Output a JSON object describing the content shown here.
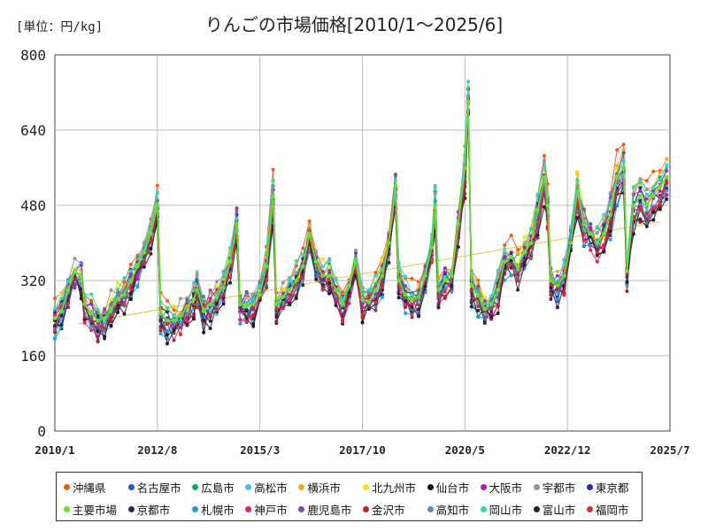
{
  "header": {
    "unit": "[単位：円/kg]",
    "title": "りんごの市場価格[2010/1～2025/6]"
  },
  "chart_data": {
    "type": "line",
    "title": "りんごの市場価格[2010/1～2025/6]",
    "ylabel": "[単位：円/kg]",
    "ylim": [
      0,
      800
    ],
    "yticks": [
      0,
      160,
      320,
      480,
      640,
      800
    ],
    "xlim": [
      "2010-01",
      "2025-07"
    ],
    "xticks": [
      "2010/1",
      "2012/8",
      "2015/3",
      "2017/10",
      "2020/5",
      "2022/12",
      "2025/7"
    ],
    "grid": true,
    "legend_position": "bottom",
    "main_series": {
      "name": "主要市場",
      "color": "#66e030",
      "points": [
        [
          "2010-01",
          240
        ],
        [
          "2010-03",
          255
        ],
        [
          "2010-05",
          300
        ],
        [
          "2010-07",
          340
        ],
        [
          "2010-09",
          330
        ],
        [
          "2010-10",
          270
        ],
        [
          "2010-12",
          250
        ],
        [
          "2011-02",
          235
        ],
        [
          "2011-04",
          240
        ],
        [
          "2011-06",
          260
        ],
        [
          "2011-08",
          280
        ],
        [
          "2011-10",
          290
        ],
        [
          "2011-12",
          320
        ],
        [
          "2012-02",
          350
        ],
        [
          "2012-04",
          380
        ],
        [
          "2012-06",
          420
        ],
        [
          "2012-08",
          480
        ],
        [
          "2012-09",
          250
        ],
        [
          "2012-11",
          235
        ],
        [
          "2013-01",
          235
        ],
        [
          "2013-03",
          245
        ],
        [
          "2013-05",
          265
        ],
        [
          "2013-07",
          280
        ],
        [
          "2013-08",
          300
        ],
        [
          "2013-10",
          255
        ],
        [
          "2013-12",
          270
        ],
        [
          "2014-02",
          285
        ],
        [
          "2014-04",
          305
        ],
        [
          "2014-06",
          360
        ],
        [
          "2014-08",
          440
        ],
        [
          "2014-09",
          270
        ],
        [
          "2014-11",
          265
        ],
        [
          "2015-01",
          270
        ],
        [
          "2015-03",
          290
        ],
        [
          "2015-05",
          350
        ],
        [
          "2015-07",
          500
        ],
        [
          "2015-08",
          270
        ],
        [
          "2015-10",
          285
        ],
        [
          "2015-12",
          300
        ],
        [
          "2016-02",
          320
        ],
        [
          "2016-04",
          350
        ],
        [
          "2016-06",
          420
        ],
        [
          "2016-08",
          360
        ],
        [
          "2016-10",
          330
        ],
        [
          "2016-12",
          330
        ],
        [
          "2017-02",
          300
        ],
        [
          "2017-04",
          270
        ],
        [
          "2017-06",
          310
        ],
        [
          "2017-08",
          360
        ],
        [
          "2017-10",
          280
        ],
        [
          "2017-12",
          275
        ],
        [
          "2018-02",
          300
        ],
        [
          "2018-04",
          330
        ],
        [
          "2018-06",
          400
        ],
        [
          "2018-08",
          520
        ],
        [
          "2018-09",
          320
        ],
        [
          "2018-11",
          290
        ],
        [
          "2019-01",
          280
        ],
        [
          "2019-03",
          285
        ],
        [
          "2019-05",
          330
        ],
        [
          "2019-07",
          390
        ],
        [
          "2019-08",
          480
        ],
        [
          "2019-09",
          300
        ],
        [
          "2019-11",
          320
        ],
        [
          "2020-01",
          330
        ],
        [
          "2020-03",
          440
        ],
        [
          "2020-05",
          560
        ],
        [
          "2020-06",
          700
        ],
        [
          "2020-07",
          310
        ],
        [
          "2020-09",
          290
        ],
        [
          "2020-11",
          260
        ],
        [
          "2021-01",
          270
        ],
        [
          "2021-03",
          300
        ],
        [
          "2021-05",
          360
        ],
        [
          "2021-07",
          370
        ],
        [
          "2021-09",
          350
        ],
        [
          "2021-11",
          380
        ],
        [
          "2022-01",
          400
        ],
        [
          "2022-03",
          470
        ],
        [
          "2022-05",
          540
        ],
        [
          "2022-06",
          480
        ],
        [
          "2022-07",
          320
        ],
        [
          "2022-09",
          310
        ],
        [
          "2022-11",
          330
        ],
        [
          "2023-01",
          400
        ],
        [
          "2023-03",
          510
        ],
        [
          "2023-05",
          440
        ],
        [
          "2023-07",
          420
        ],
        [
          "2023-09",
          400
        ],
        [
          "2023-11",
          420
        ],
        [
          "2024-01",
          460
        ],
        [
          "2024-03",
          540
        ],
        [
          "2024-05",
          560
        ],
        [
          "2024-06",
          340
        ],
        [
          "2024-08",
          480
        ],
        [
          "2024-10",
          500
        ],
        [
          "2024-12",
          480
        ],
        [
          "2025-02",
          500
        ],
        [
          "2025-04",
          520
        ],
        [
          "2025-06",
          540
        ]
      ]
    },
    "series": [
      {
        "name": "沖縄県",
        "color": "#f05a1e"
      },
      {
        "name": "名古屋市",
        "color": "#2456d6"
      },
      {
        "name": "広島市",
        "color": "#0aa37a"
      },
      {
        "name": "高松市",
        "color": "#4cc0e8"
      },
      {
        "name": "横浜市",
        "color": "#f5a623"
      },
      {
        "name": "北九州市",
        "color": "#f0e614"
      },
      {
        "name": "仙台市",
        "color": "#111111"
      },
      {
        "name": "大阪市",
        "color": "#b01ab0"
      },
      {
        "name": "宇都市",
        "color": "#8f99a6"
      },
      {
        "name": "東京都",
        "color": "#2a2a9a"
      },
      {
        "name": "主要市場",
        "color": "#66e030"
      },
      {
        "name": "京都市",
        "color": "#1e2f55"
      },
      {
        "name": "札幌市",
        "color": "#1e9ee0"
      },
      {
        "name": "神戸市",
        "color": "#e0207a"
      },
      {
        "name": "鹿児島市",
        "color": "#7a4ab0"
      },
      {
        "name": "金沢市",
        "color": "#b02828"
      },
      {
        "name": "高知市",
        "color": "#4a90b8"
      },
      {
        "name": "岡山市",
        "color": "#30d8b0"
      },
      {
        "name": "富山市",
        "color": "#2a1e3a"
      },
      {
        "name": "福岡市",
        "color": "#c83232"
      }
    ],
    "trend_line": {
      "color": "#e8c440",
      "start": [
        "2010-08",
        228
      ],
      "end": [
        "2025-04",
        445
      ]
    }
  }
}
